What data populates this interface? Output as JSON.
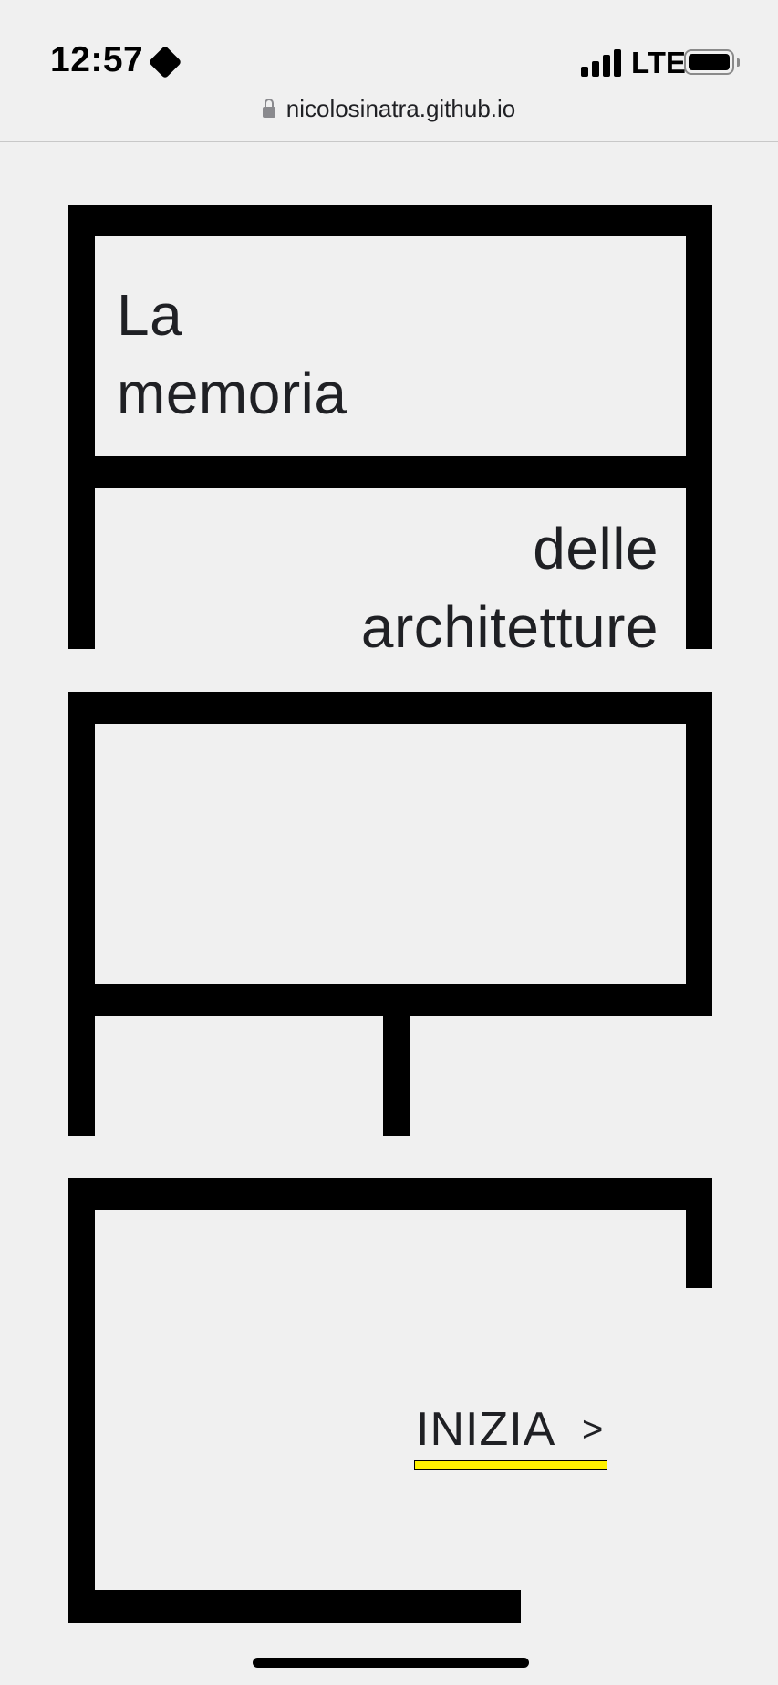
{
  "status_bar": {
    "time": "12:57",
    "network": "LTE",
    "icons": [
      "focus-mode-icon",
      "signal-icon",
      "battery-icon"
    ]
  },
  "browser": {
    "url": "nicolosinatra.github.io",
    "icons": [
      "lock-icon"
    ]
  },
  "hero": {
    "title_lines": [
      "La",
      "memoria",
      "delle",
      "architetture"
    ]
  },
  "cta": {
    "label": "INIZIA",
    "arrow": ">",
    "underline_color": "#fff200"
  },
  "colors": {
    "background": "#f0f0f0",
    "frame": "#000000",
    "text": "#1f2024",
    "accent": "#fff200"
  }
}
